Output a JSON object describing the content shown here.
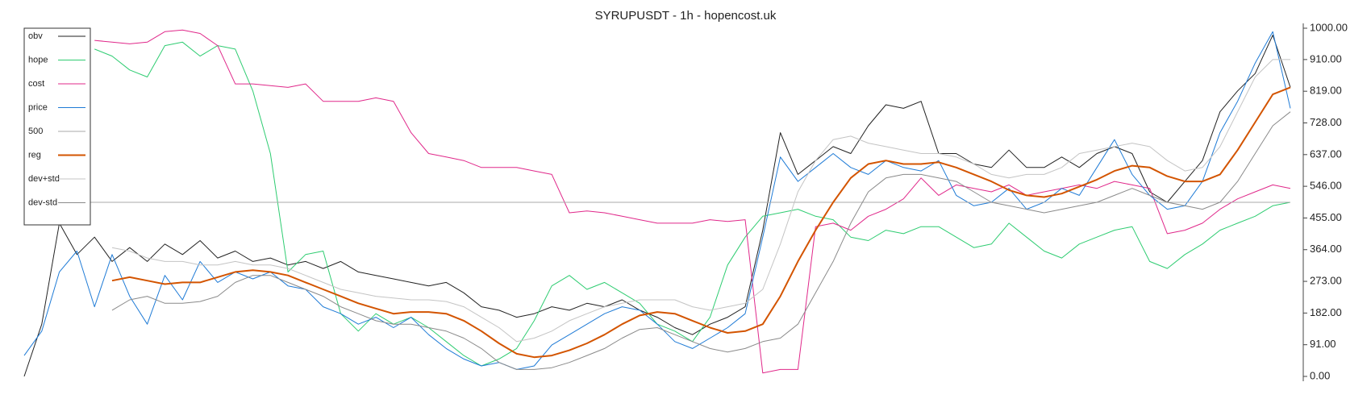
{
  "chart_data": {
    "type": "line",
    "title": "SYRUPUSDT - 1h - hopencost.uk",
    "legend": "upper left",
    "grid": false,
    "ylim": [
      0,
      1000
    ],
    "yticks": [
      {
        "value": 0,
        "label": "0.00"
      },
      {
        "value": 91,
        "label": "91.00"
      },
      {
        "value": 182,
        "label": "182.00"
      },
      {
        "value": 273,
        "label": "273.00"
      },
      {
        "value": 364,
        "label": "364.00"
      },
      {
        "value": 455,
        "label": "455.00"
      },
      {
        "value": 546,
        "label": "546.00"
      },
      {
        "value": 637,
        "label": "637.00"
      },
      {
        "value": 728,
        "label": "728.00"
      },
      {
        "value": 819,
        "label": "819.00"
      },
      {
        "value": 910,
        "label": "910.00"
      },
      {
        "value": 1000,
        "label": "1000.00"
      }
    ],
    "series": [
      {
        "name": "obv",
        "color": "#222222",
        "linewidth": 1,
        "values": [
          0,
          150,
          440,
          350,
          400,
          330,
          370,
          330,
          380,
          350,
          390,
          340,
          360,
          330,
          340,
          320,
          330,
          310,
          330,
          300,
          290,
          280,
          270,
          260,
          270,
          240,
          200,
          190,
          170,
          180,
          200,
          190,
          210,
          200,
          220,
          190,
          170,
          140,
          120,
          150,
          170,
          200,
          420,
          700,
          580,
          620,
          660,
          640,
          720,
          780,
          770,
          790,
          640,
          640,
          610,
          600,
          650,
          600,
          600,
          630,
          600,
          640,
          660,
          640,
          530,
          500,
          560,
          620,
          760,
          820,
          870,
          980,
          830
        ]
      },
      {
        "name": "hope",
        "color": "#2ecc71",
        "linewidth": 1,
        "values": [
          null,
          null,
          null,
          null,
          940,
          920,
          880,
          860,
          950,
          960,
          920,
          950,
          940,
          820,
          640,
          300,
          350,
          360,
          180,
          130,
          180,
          150,
          170,
          140,
          100,
          60,
          30,
          50,
          80,
          160,
          260,
          290,
          250,
          270,
          240,
          210,
          150,
          130,
          100,
          170,
          320,
          400,
          460,
          470,
          480,
          460,
          450,
          400,
          390,
          420,
          410,
          430,
          430,
          400,
          370,
          380,
          440,
          400,
          360,
          340,
          380,
          400,
          420,
          430,
          330,
          310,
          350,
          380,
          420,
          440,
          460,
          490,
          500
        ]
      },
      {
        "name": "cost",
        "color": "#e0288a",
        "linewidth": 1,
        "values": [
          null,
          null,
          null,
          null,
          965,
          960,
          955,
          960,
          990,
          995,
          985,
          950,
          840,
          840,
          835,
          830,
          840,
          790,
          790,
          790,
          800,
          790,
          700,
          640,
          630,
          620,
          600,
          600,
          600,
          590,
          580,
          470,
          475,
          470,
          460,
          450,
          440,
          440,
          440,
          450,
          445,
          450,
          10,
          20,
          20,
          430,
          440,
          420,
          460,
          480,
          510,
          570,
          520,
          550,
          540,
          530,
          550,
          520,
          530,
          540,
          550,
          540,
          560,
          550,
          540,
          410,
          420,
          440,
          480,
          510,
          530,
          550,
          540
        ]
      },
      {
        "name": "price",
        "color": "#1f7bd6",
        "linewidth": 1,
        "values": [
          60,
          130,
          300,
          360,
          200,
          350,
          230,
          150,
          290,
          220,
          330,
          270,
          300,
          280,
          300,
          260,
          250,
          200,
          180,
          150,
          170,
          140,
          170,
          120,
          80,
          50,
          30,
          40,
          20,
          30,
          90,
          120,
          150,
          180,
          200,
          190,
          150,
          100,
          80,
          110,
          140,
          180,
          400,
          630,
          560,
          600,
          640,
          600,
          580,
          620,
          600,
          590,
          620,
          520,
          490,
          500,
          540,
          480,
          500,
          540,
          520,
          600,
          680,
          580,
          520,
          480,
          490,
          560,
          700,
          790,
          900,
          990,
          770
        ]
      },
      {
        "name": "500",
        "color": "#aaaaaa",
        "linewidth": 1,
        "values": [
          500,
          500,
          500,
          500,
          500,
          500,
          500,
          500,
          500,
          500,
          500,
          500,
          500,
          500,
          500,
          500,
          500,
          500,
          500,
          500,
          500,
          500,
          500,
          500,
          500,
          500,
          500,
          500,
          500,
          500,
          500,
          500,
          500,
          500,
          500,
          500,
          500,
          500,
          500,
          500,
          500,
          500,
          500,
          500,
          500,
          500,
          500,
          500,
          500,
          500,
          500,
          500,
          500,
          500,
          500,
          500,
          500,
          500,
          500,
          500,
          500,
          500,
          500,
          500,
          500,
          500,
          500,
          500,
          500,
          500,
          500,
          500,
          500
        ]
      },
      {
        "name": "reg",
        "color": "#d35400",
        "linewidth": 2,
        "values": [
          null,
          null,
          null,
          null,
          null,
          275,
          285,
          275,
          265,
          270,
          270,
          285,
          300,
          305,
          300,
          290,
          270,
          250,
          230,
          210,
          195,
          180,
          185,
          185,
          180,
          160,
          130,
          95,
          65,
          55,
          60,
          75,
          95,
          120,
          150,
          175,
          185,
          180,
          160,
          140,
          125,
          130,
          150,
          230,
          330,
          420,
          500,
          570,
          610,
          620,
          610,
          610,
          615,
          600,
          580,
          560,
          535,
          520,
          515,
          525,
          545,
          565,
          590,
          605,
          600,
          575,
          560,
          560,
          580,
          650,
          730,
          810,
          830
        ]
      },
      {
        "name": "dev+std",
        "color": "#c4c4c4",
        "linewidth": 1,
        "values": [
          null,
          null,
          null,
          null,
          null,
          370,
          360,
          340,
          330,
          330,
          320,
          320,
          330,
          320,
          320,
          310,
          290,
          270,
          250,
          240,
          230,
          225,
          220,
          220,
          215,
          200,
          170,
          140,
          100,
          110,
          130,
          160,
          180,
          200,
          210,
          220,
          220,
          220,
          200,
          190,
          200,
          210,
          250,
          380,
          530,
          620,
          680,
          690,
          670,
          660,
          650,
          640,
          640,
          630,
          610,
          580,
          570,
          580,
          580,
          600,
          640,
          650,
          660,
          670,
          660,
          620,
          590,
          600,
          660,
          760,
          860,
          910,
          910
        ]
      },
      {
        "name": "dev-std",
        "color": "#8a8a8a",
        "linewidth": 1,
        "values": [
          null,
          null,
          null,
          null,
          null,
          190,
          220,
          230,
          210,
          210,
          215,
          230,
          270,
          290,
          290,
          270,
          250,
          230,
          200,
          180,
          160,
          150,
          150,
          140,
          130,
          110,
          80,
          40,
          20,
          20,
          25,
          40,
          60,
          80,
          110,
          135,
          140,
          120,
          100,
          80,
          70,
          80,
          100,
          110,
          150,
          240,
          330,
          440,
          530,
          570,
          580,
          580,
          570,
          560,
          530,
          500,
          490,
          480,
          470,
          480,
          490,
          500,
          520,
          540,
          520,
          500,
          490,
          480,
          500,
          560,
          640,
          720,
          760
        ]
      }
    ]
  }
}
